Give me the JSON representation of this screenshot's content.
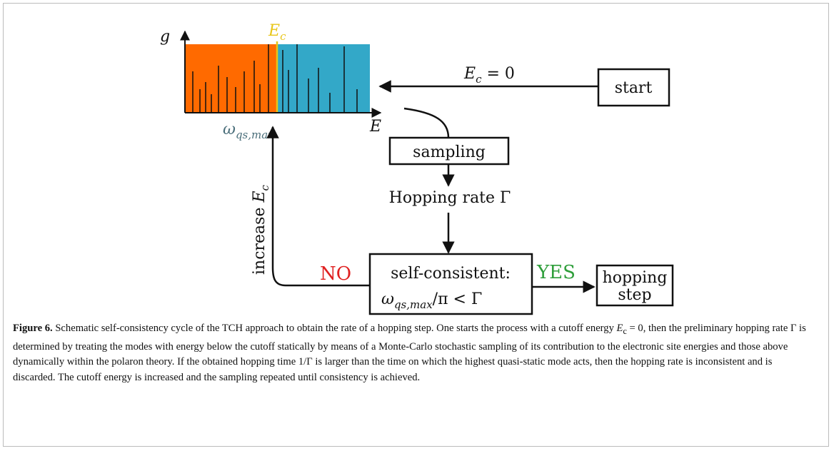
{
  "figure": {
    "spectrum": {
      "y_axis_label": "g",
      "x_axis_label": "E",
      "cutoff_label": {
        "base": "E",
        "sub": "c"
      },
      "mode_label": {
        "base": "ω",
        "sub": "qs,max"
      }
    },
    "nodes": [
      {
        "id": "start",
        "label": "start"
      },
      {
        "id": "sampling",
        "label": "sampling"
      },
      {
        "id": "check",
        "lines": [
          "self-consistent:",
          {
            "base": "ω",
            "sub": "qs,max",
            "rest": "/π < Γ"
          }
        ]
      },
      {
        "id": "hop",
        "lines": [
          "hopping",
          "step"
        ]
      }
    ],
    "edges": [
      {
        "label": {
          "base": "E",
          "sub": "c",
          "rest": " = 0"
        }
      },
      {
        "label": "Hopping rate Γ"
      },
      {
        "label": "YES"
      },
      {
        "label": "NO"
      },
      {
        "label": {
          "pre": "increase ",
          "base": "E",
          "sub": "c"
        }
      }
    ],
    "caption": {
      "label": "Figure 6.",
      "text1": " Schematic self-consistency cycle of the TCH approach to obtain the rate of a hopping step. One starts the process with a cutoff energy ",
      "math_base": "E",
      "math_sub": "c",
      "math_rest": " = 0",
      "text2": ", then the preliminary hopping rate Γ is determined by treating the modes with energy below the cutoff statically by means of a Monte-Carlo stochastic sampling of its contribution to the electronic site energies and those above dynamically within the polaron theory. If the obtained hopping time 1/Γ is larger than the time on which the highest quasi-static mode acts, then the hopping rate is inconsistent and is discarded. The cutoff energy is increased and the sampling repeated until consistency is achieved."
    }
  }
}
